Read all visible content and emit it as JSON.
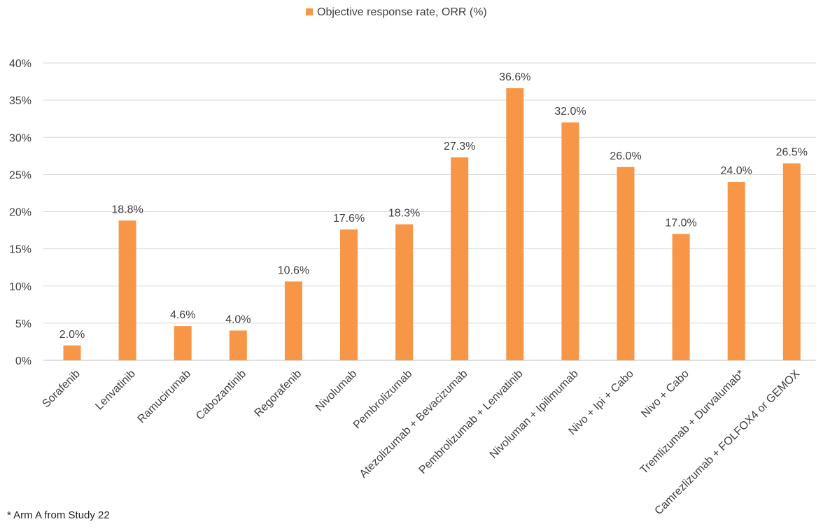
{
  "chart_data": {
    "type": "bar",
    "legend": [
      "Objective response rate, ORR (%)"
    ],
    "legend_position": "top",
    "categories": [
      "Sorafenib",
      "Lenvatinib",
      "Ramucirumab",
      "Cabozantinib",
      "Regorafenib",
      "Nivolumab",
      "Pembrolizumab",
      "Atezolizumab + Bevacizumab",
      "Pembrolizumab + Lenvatinib",
      "Nivoluman + Ipilimumab",
      "Nivo + Ipi + Cabo",
      "Nivo + Cabo",
      "Tremlizumab + Durvalumab*",
      "Camrezlizumab + FOLFOX4 or GEMOX"
    ],
    "series": [
      {
        "name": "Objective response rate, ORR (%)",
        "values": [
          2.0,
          18.8,
          4.6,
          4.0,
          10.6,
          17.6,
          18.3,
          27.3,
          36.6,
          32.0,
          26.0,
          17.0,
          24.0,
          26.5
        ],
        "data_labels": [
          "2.0%",
          "18.8%",
          "4.6%",
          "4.0%",
          "10.6%",
          "17.6%",
          "18.3%",
          "27.3%",
          "36.6%",
          "32.0%",
          "26.0%",
          "17.0%",
          "24.0%",
          "26.5%"
        ]
      }
    ],
    "y_ticks": [
      "0%",
      "5%",
      "10%",
      "15%",
      "20%",
      "25%",
      "30%",
      "35%",
      "40%"
    ],
    "ylim": [
      0,
      40
    ],
    "grid": true,
    "colors": {
      "bar": "#F79646",
      "grid": "#D9D9D9",
      "axis": "#BFBFBF",
      "text": "#404040"
    }
  },
  "footnote": "* Arm A  from Study 22"
}
